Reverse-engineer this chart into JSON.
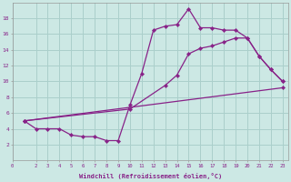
{
  "background_color": "#cce8e4",
  "grid_color": "#aacfcb",
  "line_color": "#882288",
  "x_label": "Windchill (Refroidissement éolien,°C)",
  "x_ticks": [
    0,
    2,
    3,
    4,
    5,
    6,
    7,
    8,
    9,
    10,
    11,
    12,
    13,
    14,
    15,
    16,
    17,
    18,
    19,
    20,
    21,
    22,
    23
  ],
  "y_ticks": [
    2,
    4,
    6,
    8,
    10,
    12,
    14,
    16,
    18
  ],
  "ylim": [
    0,
    20
  ],
  "xlim": [
    0,
    23.5
  ],
  "series1_x": [
    1,
    2,
    3,
    4,
    5,
    6,
    7,
    8,
    9,
    10,
    11,
    12,
    13,
    14,
    15,
    16,
    17,
    18,
    19,
    20,
    21,
    22,
    23
  ],
  "series1_y": [
    5.0,
    4.0,
    4.0,
    4.0,
    3.2,
    3.0,
    3.0,
    2.5,
    2.5,
    7.0,
    11.0,
    16.5,
    17.0,
    17.2,
    19.2,
    16.8,
    16.8,
    16.5,
    16.5,
    15.5,
    13.2,
    11.5,
    10.0
  ],
  "series2_x": [
    1,
    23
  ],
  "series2_y": [
    5.0,
    9.2
  ],
  "series3_x": [
    1,
    10,
    13,
    14,
    15,
    16,
    17,
    18,
    19,
    20,
    21,
    22,
    23
  ],
  "series3_y": [
    5.0,
    6.5,
    9.5,
    10.8,
    13.5,
    14.2,
    14.5,
    15.0,
    15.5,
    15.5,
    13.2,
    11.5,
    10.0
  ]
}
